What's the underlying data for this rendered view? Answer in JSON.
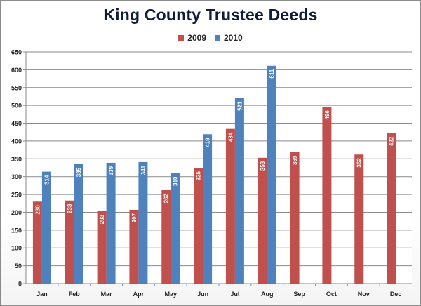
{
  "chart_data": {
    "type": "bar",
    "title": "King County Trustee Deeds",
    "xlabel": "",
    "ylabel": "",
    "categories": [
      "Jan",
      "Feb",
      "Mar",
      "Apr",
      "May",
      "Jun",
      "Jul",
      "Aug",
      "Sep",
      "Oct",
      "Nov",
      "Dec"
    ],
    "series": [
      {
        "name": "2009",
        "color": "#c0504d",
        "values": [
          230,
          233,
          203,
          207,
          262,
          325,
          434,
          353,
          369,
          496,
          362,
          422
        ],
        "labels": [
          "230",
          "233",
          "203",
          "207",
          "262",
          "325",
          "434",
          "353",
          "369",
          "496",
          "362",
          "422"
        ]
      },
      {
        "name": "2010",
        "color": "#4f81bd",
        "values": [
          314,
          335,
          339,
          341,
          310,
          419,
          521,
          611,
          null,
          null,
          null,
          null
        ],
        "labels": [
          "314",
          "335",
          "339",
          "341",
          "310",
          "419",
          "521",
          "611",
          null,
          null,
          null,
          null
        ]
      }
    ],
    "ylim": [
      0,
      650
    ],
    "yticks": [
      "0",
      "50",
      "100",
      "150",
      "200",
      "250",
      "300",
      "350",
      "400",
      "450",
      "500",
      "550",
      "600",
      "650"
    ],
    "grid": true,
    "legend_position": "top"
  }
}
